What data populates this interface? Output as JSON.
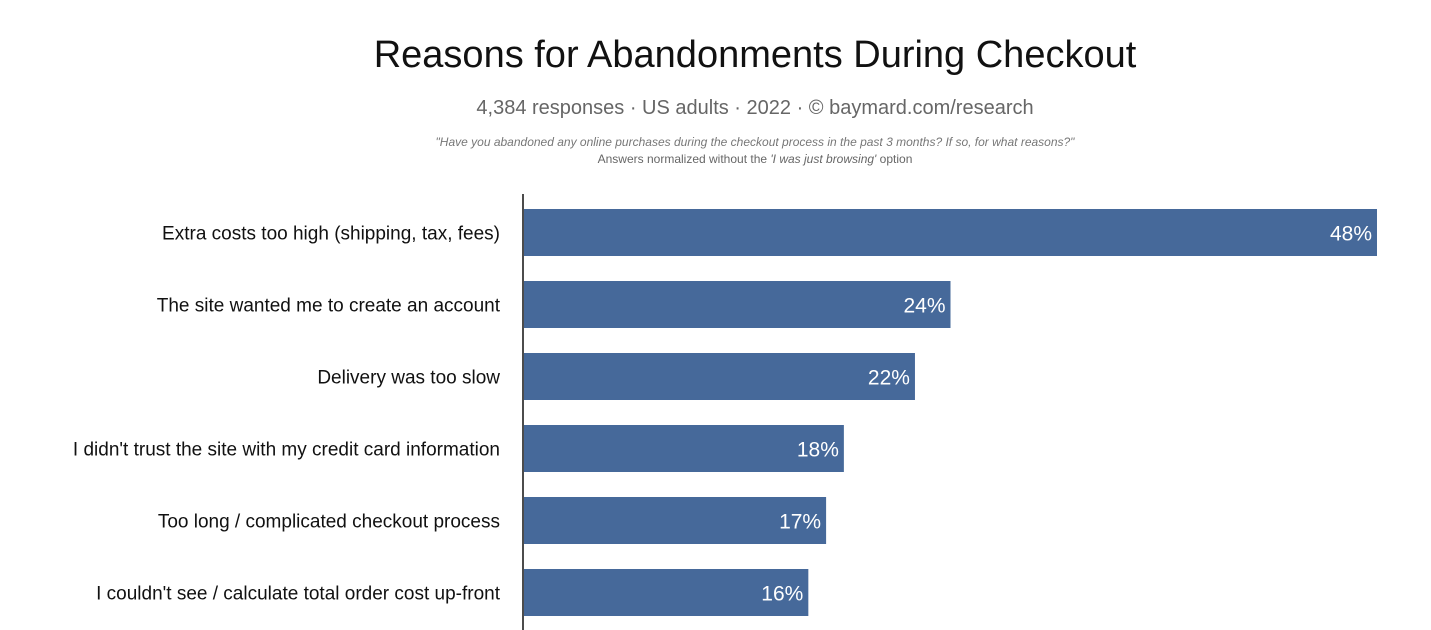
{
  "header": {
    "title": "Reasons for Abandonments During Checkout",
    "subtitle": "4,384 responses  ·  US adults  ·  2022  ·  ©  baymard.com/research",
    "question": "\"Have you abandoned any online purchases during the checkout process in the past 3 months? If so, for what reasons?\"",
    "note_prefix": "Answers normalized without the ",
    "note_option": "'I was just browsing'",
    "note_suffix": " option"
  },
  "chart_data": {
    "type": "bar",
    "orientation": "horizontal",
    "categories": [
      "Extra costs too high (shipping, tax, fees)",
      "The site wanted me to create an account",
      "Delivery was too slow",
      "I didn't trust the site with my credit card information",
      "Too long / complicated checkout process",
      "I couldn't see / calculate total order cost up-front"
    ],
    "values": [
      48,
      24,
      22,
      18,
      17,
      16
    ],
    "value_labels": [
      "48%",
      "24%",
      "22%",
      "18%",
      "17%",
      "16%"
    ],
    "unit": "%",
    "bar_color": "#46699a",
    "grid": false,
    "legend": false
  }
}
